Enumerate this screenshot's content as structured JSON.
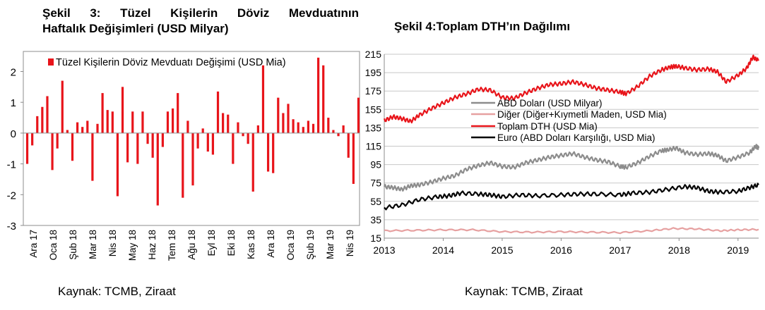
{
  "chart_data": [
    {
      "type": "bar",
      "title": "Şekil 3: Tüzel Kişilerin Döviz Mevduatının Haftalık Değişimleri (USD Milyar)",
      "legend": "Tüzel Kişilerin Döviz Mevduatı Değişimi (USD Mia)",
      "legend_position": "top",
      "color": "#e8141a",
      "ylim": [
        -3,
        2.5
      ],
      "yticks": [
        2,
        1,
        0,
        -1,
        -2,
        -3
      ],
      "x_ticks": [
        "Ara 17",
        "Oca 18",
        "Şub 18",
        "Mar 18",
        "Nis 18",
        "May 18",
        "Haz 18",
        "Tem 18",
        "Ağu 18",
        "Eyl 18",
        "Eki 18",
        "Kas 18",
        "Ara 18",
        "Oca 19",
        "Şub 19",
        "Mar 19",
        "Nis 19"
      ],
      "values": [
        -1.0,
        -0.4,
        0.55,
        0.85,
        1.2,
        -1.2,
        -0.5,
        1.7,
        0.1,
        -0.9,
        0.35,
        0.2,
        0.4,
        -1.55,
        0.3,
        1.3,
        0.75,
        0.7,
        -2.05,
        1.5,
        -0.95,
        0.7,
        -1.0,
        0.7,
        -0.35,
        -0.8,
        -2.35,
        -0.45,
        0.7,
        0.8,
        1.3,
        -2.1,
        0.4,
        -1.7,
        -0.5,
        0.15,
        -0.6,
        -0.7,
        1.35,
        0.65,
        0.6,
        -1.0,
        0.35,
        -0.1,
        -0.35,
        -1.9,
        0.25,
        2.2,
        -1.25,
        -1.3,
        1.15,
        0.65,
        0.95,
        0.45,
        0.35,
        0.2,
        0.4,
        0.3,
        2.45,
        2.2,
        0.5,
        0.1,
        -0.1,
        0.25,
        -0.8,
        -1.65,
        1.15
      ],
      "source": "Kaynak: TCMB, Ziraat"
    },
    {
      "type": "line",
      "title": "Şekil 4:Toplam DTH’ın Dağılımı",
      "ylim": [
        15,
        215
      ],
      "yticks": [
        215,
        195,
        175,
        155,
        135,
        115,
        95,
        75,
        55,
        35,
        15
      ],
      "xlim": [
        2013,
        2019.35
      ],
      "xticks": [
        2013,
        2014,
        2015,
        2016,
        2017,
        2018,
        2019
      ],
      "grid": "horizontal",
      "legend_position": "center-left",
      "series": [
        {
          "name": "ABD Doları (USD Milyar)",
          "color": "#8c8c8c",
          "x": [
            2013,
            2013.15,
            2013.3,
            2013.45,
            2013.6,
            2013.8,
            2014,
            2014.2,
            2014.4,
            2014.6,
            2014.8,
            2015,
            2015.2,
            2015.4,
            2015.6,
            2015.8,
            2016,
            2016.2,
            2016.4,
            2016.6,
            2016.8,
            2017,
            2017.1,
            2017.3,
            2017.5,
            2017.7,
            2017.8,
            2017.95,
            2018.1,
            2018.3,
            2018.5,
            2018.65,
            2018.8,
            2019,
            2019.2,
            2019.3,
            2019.35
          ],
          "values": [
            71,
            70,
            68,
            72,
            73,
            76,
            80,
            83,
            90,
            94,
            97,
            93,
            92,
            97,
            100,
            103,
            105,
            107,
            103,
            100,
            98,
            93,
            92,
            97,
            104,
            110,
            111,
            113,
            108,
            106,
            107,
            105,
            99,
            103,
            108,
            115,
            113
          ]
        },
        {
          "name": "Diğer (Diğer+Kıymetli Maden, USD Mia)",
          "color": "#e6a0a0",
          "x": [
            2013,
            2013.5,
            2014,
            2014.5,
            2015,
            2015.5,
            2016,
            2016.5,
            2017,
            2017.5,
            2017.9,
            2018.3,
            2018.7,
            2019,
            2019.35
          ],
          "values": [
            23,
            23.5,
            24,
            24,
            22,
            21.5,
            22,
            21.5,
            21,
            23,
            25.5,
            25,
            23,
            24,
            24.5
          ]
        },
        {
          "name": "Toplam DTH (USD Mia)",
          "color": "#e8141a",
          "x": [
            2013,
            2013.15,
            2013.3,
            2013.45,
            2013.6,
            2013.8,
            2014,
            2014.2,
            2014.4,
            2014.6,
            2014.8,
            2015,
            2015.2,
            2015.4,
            2015.6,
            2015.8,
            2016,
            2016.2,
            2016.4,
            2016.6,
            2016.8,
            2017,
            2017.1,
            2017.3,
            2017.5,
            2017.7,
            2017.85,
            2017.95,
            2018.1,
            2018.3,
            2018.5,
            2018.65,
            2018.8,
            2019,
            2019.15,
            2019.25,
            2019.35
          ],
          "values": [
            143,
            147,
            145,
            142,
            149,
            156,
            162,
            168,
            172,
            177,
            176,
            168,
            167,
            173,
            178,
            182,
            183,
            185,
            182,
            178,
            176,
            174,
            172,
            180,
            191,
            198,
            201,
            202,
            200,
            198,
            199,
            196,
            185,
            192,
            200,
            212,
            208
          ]
        },
        {
          "name": "Euro (ABD Doları Karşılığı, USD Mia)",
          "color": "#000000",
          "x": [
            2013,
            2013.3,
            2013.6,
            2013.9,
            2014.1,
            2014.3,
            2014.6,
            2014.8,
            2015,
            2015.3,
            2015.6,
            2016,
            2016.3,
            2016.6,
            2017,
            2017.2,
            2017.5,
            2017.8,
            2018.1,
            2018.3,
            2018.5,
            2018.7,
            2019,
            2019.2,
            2019.35
          ],
          "values": [
            48,
            51,
            57,
            60,
            61,
            64,
            63,
            62,
            60,
            62,
            61,
            62,
            63,
            63,
            62,
            64,
            65,
            68,
            71,
            70,
            66,
            65,
            66,
            70,
            73
          ]
        }
      ],
      "source": "Kaynak: TCMB, Ziraat"
    }
  ]
}
